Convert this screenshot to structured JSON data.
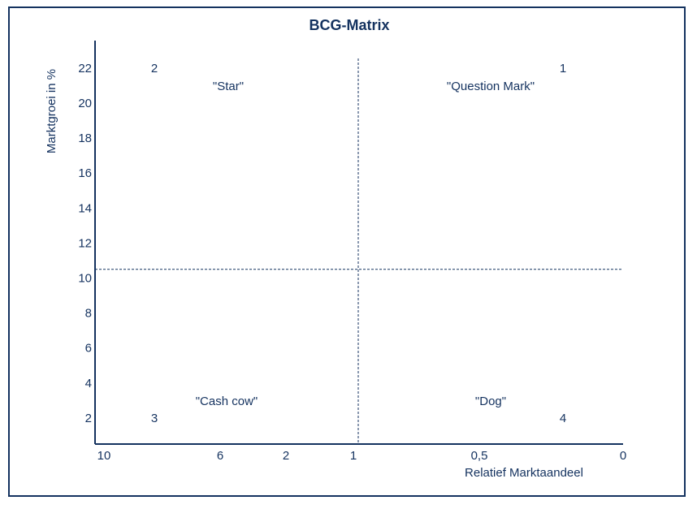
{
  "chart_data": {
    "type": "scatter",
    "title": "BCG-Matrix",
    "xlabel": "Relatief Marktaandeel",
    "ylabel": "Marktgroei in %",
    "x_ticks": [
      "10",
      "6",
      "2",
      "1",
      "0,5",
      "0"
    ],
    "y_ticks": [
      "2",
      "4",
      "6",
      "8",
      "10",
      "12",
      "14",
      "16",
      "18",
      "20",
      "22"
    ],
    "ylim": [
      0,
      23
    ],
    "grid": false,
    "divider_x_label": "1",
    "divider_y": 10.5,
    "quadrants": [
      "\"Star\"",
      "\"Question Mark\"",
      "\"Cash cow\"",
      "\"Dog\""
    ],
    "points": [
      {
        "label": "1",
        "x": "0,2",
        "y": 22
      },
      {
        "label": "2",
        "x": "8,2",
        "y": 22
      },
      {
        "label": "3",
        "x": "8,2",
        "y": 2
      },
      {
        "label": "4",
        "x": "0,2",
        "y": 2
      }
    ],
    "colors": {
      "ink": "#14325f"
    }
  }
}
